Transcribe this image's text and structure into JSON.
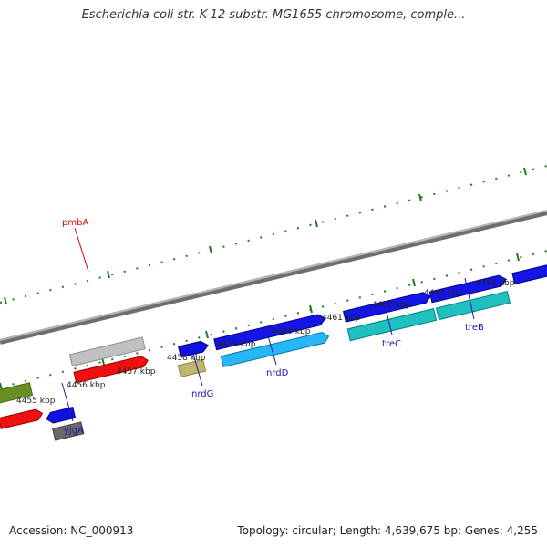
{
  "title": "Escherichia coli str. K-12 substr. MG1655 chromosome, comple...",
  "footer": {
    "accession": "Accession: NC_000913",
    "summary": "Topology: circular; Length: 4,639,675 bp; Genes: 4,255"
  },
  "colors": {
    "backbone": "#8a8a8a",
    "ticks": "#1f7a1f",
    "gene_label_blue": "#1a1aa8",
    "gene_label_red": "#cc1111"
  },
  "kbp_labels": [
    "4455 kbp",
    "4456 kbp",
    "4457 kbp",
    "4458 kbp",
    "4459 kbp",
    "4460 kbp",
    "4461 kbp",
    "4462 kbp",
    "4463 kbp",
    "4464 kbp"
  ],
  "gene_labels": [
    {
      "name": "pmbA",
      "color": "red"
    },
    {
      "name": "yjgA",
      "color": "blue"
    },
    {
      "name": "nrdG",
      "color": "blue"
    },
    {
      "name": "nrdD",
      "color": "blue"
    },
    {
      "name": "treC",
      "color": "blue"
    },
    {
      "name": "treB",
      "color": "blue"
    }
  ]
}
